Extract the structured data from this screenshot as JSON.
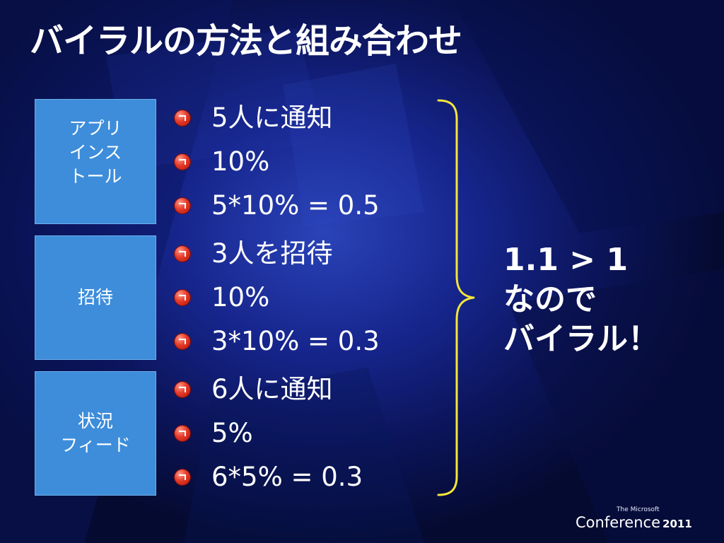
{
  "slide": {
    "title": "バイラルの方法と組み合わせ"
  },
  "boxes": [
    {
      "lines": [
        "アプリ",
        "インス",
        "トール"
      ]
    },
    {
      "lines": [
        "招待"
      ]
    },
    {
      "lines": [
        "状況",
        "フィード"
      ]
    }
  ],
  "bullet_groups": [
    {
      "items": [
        "5人に通知",
        "10%",
        "5*10% = 0.5"
      ]
    },
    {
      "items": [
        "3人を招待",
        "10%",
        "3*10% = 0.3"
      ]
    },
    {
      "items": [
        "6人に通知",
        "5%",
        "6*5% = 0.3"
      ]
    }
  ],
  "result": {
    "lines": [
      "1.1 > 1",
      "なので",
      "バイラル！"
    ]
  },
  "logo": {
    "small": "The Microsoft",
    "main": "Conference",
    "year": "2011"
  },
  "colors": {
    "box_fill": "#3d8ddb",
    "brace": "#f5e63a",
    "bullet": "#e53b2a",
    "background": "#16258c"
  }
}
